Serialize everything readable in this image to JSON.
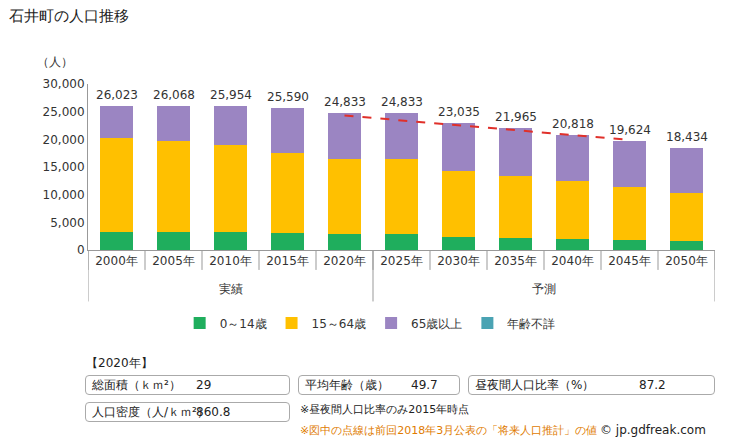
{
  "chart_data": {
    "type": "bar",
    "stacked": true,
    "title": "石井町の人口推移",
    "y_label": "（人）",
    "categories": [
      "2000年",
      "2005年",
      "2010年",
      "2015年",
      "2020年",
      "2025年",
      "2030年",
      "2035年",
      "2040年",
      "2045年",
      "2050年"
    ],
    "series": [
      {
        "name": "0～14歳",
        "color": "#1fae5d",
        "values": [
          3200,
          3300,
          3200,
          3000,
          2900,
          2900,
          2300,
          2100,
          1900,
          1800,
          1600
        ]
      },
      {
        "name": "15～64歳",
        "color": "#ffc000",
        "values": [
          17070,
          16470,
          15730,
          14590,
          13520,
          13520,
          11940,
          11300,
          10660,
          9590,
          8785
        ]
      },
      {
        "name": "65歳以上",
        "color": "#9b85c2",
        "values": [
          5753,
          6298,
          7024,
          8000,
          8413,
          8413,
          8795,
          8565,
          8258,
          8234,
          8049
        ]
      },
      {
        "name": "年齢不詳",
        "color": "#4aa3b3",
        "values": [
          0,
          0,
          0,
          0,
          0,
          0,
          0,
          0,
          0,
          0,
          0
        ]
      },
      {
        "type": "line",
        "line_style": "dashed",
        "color": "#e0302a",
        "values": [
          null,
          null,
          null,
          null,
          24300,
          23400,
          22500,
          21700,
          20800,
          19900,
          null
        ]
      }
    ],
    "totals": [
      26023,
      26068,
      25954,
      25590,
      24833,
      24833,
      23035,
      21965,
      20818,
      19624,
      18434
    ],
    "total_labels": [
      "26,023",
      "26,068",
      "25,954",
      "25,590",
      "24,833",
      "24,833",
      "23,035",
      "21,965",
      "20,818",
      "19,624",
      "18,434"
    ],
    "groups": [
      {
        "label": "実績",
        "categories": [
          "2000年",
          "2005年",
          "2010年",
          "2015年",
          "2020年"
        ]
      },
      {
        "label": "予測",
        "categories": [
          "2025年",
          "2030年",
          "2035年",
          "2040年",
          "2045年",
          "2050年"
        ]
      }
    ],
    "ylim": [
      0,
      30000
    ],
    "yticks": [
      0,
      {
        "value": 5000,
        "label": "5,000"
      },
      {
        "value": 10000,
        "label": "10,000"
      },
      {
        "value": 15000,
        "label": "15,000"
      },
      {
        "value": 20000,
        "label": "20,000"
      },
      {
        "value": 25000,
        "label": "25,000"
      },
      {
        "value": 30000,
        "label": "30,000"
      }
    ],
    "grid": false,
    "legend": "bottom"
  },
  "info": {
    "heading": "【2020年】",
    "items": [
      {
        "label": "総面積（ｋｍ²）",
        "value": 29
      },
      {
        "label": "平均年齢（歳）",
        "value": 49.7
      },
      {
        "label": "昼夜間人口比率（%）",
        "value": 87.2
      },
      {
        "label": "人口密度（人/ｋｍ²）",
        "value": 860.8
      }
    ],
    "notes": [
      "※昼夜間人口比率のみ2015年時点",
      "※図中の点線は前回2018年3月公表の「将来人口推計」の値"
    ],
    "credit": "© jp.gdfreak.com"
  }
}
